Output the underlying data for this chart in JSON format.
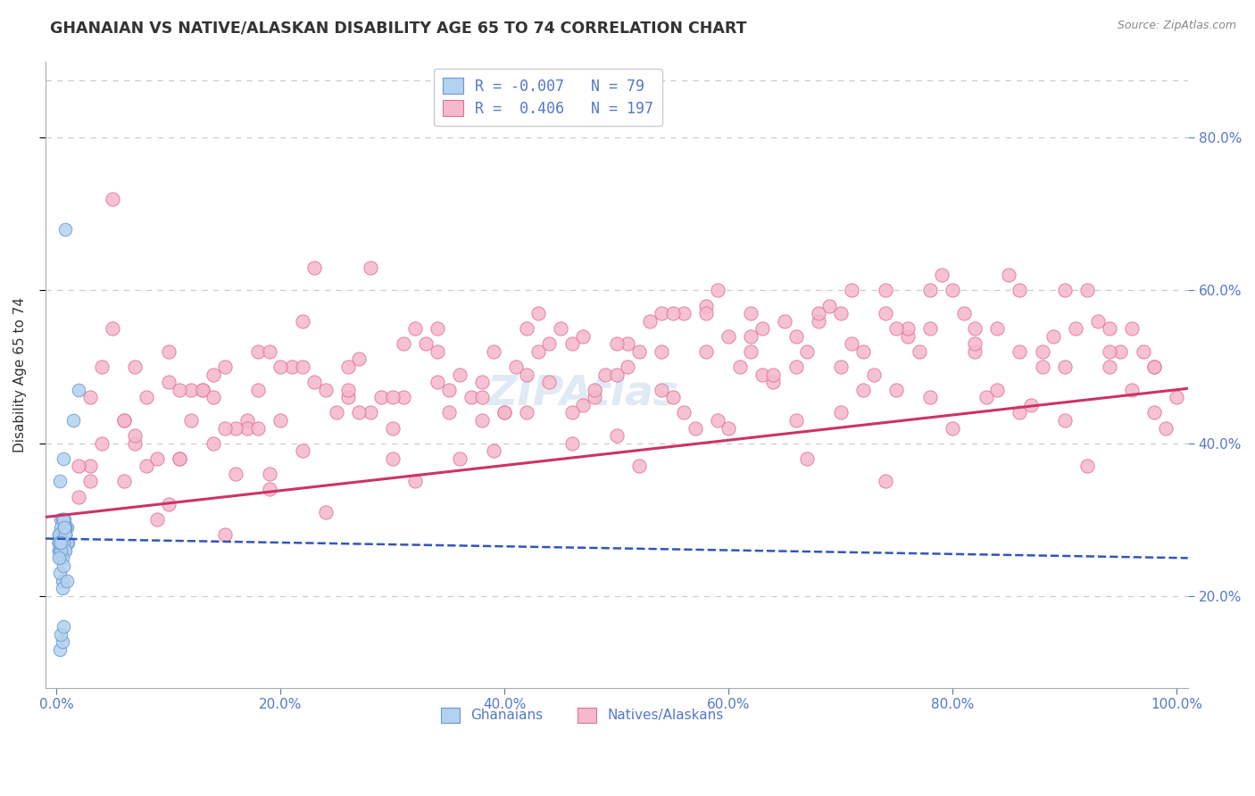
{
  "title": "GHANAIAN VS NATIVE/ALASKAN DISABILITY AGE 65 TO 74 CORRELATION CHART",
  "source": "Source: ZipAtlas.com",
  "ylabel": "Disability Age 65 to 74",
  "xlim": [
    -0.01,
    1.01
  ],
  "ylim": [
    0.08,
    0.9
  ],
  "ytick_vals": [
    0.2,
    0.4,
    0.6,
    0.8
  ],
  "xtick_vals": [
    0.0,
    0.2,
    0.4,
    0.6,
    0.8,
    1.0
  ],
  "legend_R1": "-0.007",
  "legend_N1": "79",
  "legend_R2": "0.406",
  "legend_N2": "197",
  "ghanaian_face": "#b3d1f0",
  "ghanaian_edge": "#6699cc",
  "native_face": "#f5b8cc",
  "native_edge": "#e07090",
  "trend_blue": "#3355bb",
  "trend_pink": "#cc3366",
  "text_color": "#5577cc",
  "grid_color": "#cccccc",
  "title_color": "#333333",
  "source_color": "#888888",
  "watermark_color": "#99bbdd",
  "seed": 42,
  "ghanaians_x": [
    0.005,
    0.008,
    0.003,
    0.006,
    0.01,
    0.004,
    0.007,
    0.002,
    0.009,
    0.005,
    0.003,
    0.006,
    0.004,
    0.008,
    0.002,
    0.005,
    0.007,
    0.003,
    0.006,
    0.004,
    0.008,
    0.002,
    0.005,
    0.003,
    0.007,
    0.004,
    0.006,
    0.002,
    0.005,
    0.009,
    0.003,
    0.006,
    0.004,
    0.007,
    0.002,
    0.005,
    0.008,
    0.003,
    0.006,
    0.004,
    0.007,
    0.002,
    0.005,
    0.003,
    0.006,
    0.004,
    0.008,
    0.002,
    0.005,
    0.007,
    0.003,
    0.006,
    0.004,
    0.008,
    0.002,
    0.005,
    0.007,
    0.003,
    0.006,
    0.004,
    0.008,
    0.002,
    0.005,
    0.003,
    0.007,
    0.004,
    0.006,
    0.002,
    0.005,
    0.009,
    0.003,
    0.006,
    0.015,
    0.02,
    0.003,
    0.005,
    0.004,
    0.006,
    0.008
  ],
  "ghanaians_y": [
    0.27,
    0.28,
    0.26,
    0.29,
    0.27,
    0.28,
    0.26,
    0.27,
    0.29,
    0.28,
    0.26,
    0.27,
    0.3,
    0.28,
    0.27,
    0.26,
    0.29,
    0.28,
    0.27,
    0.26,
    0.29,
    0.27,
    0.28,
    0.26,
    0.29,
    0.27,
    0.3,
    0.26,
    0.28,
    0.27,
    0.25,
    0.29,
    0.27,
    0.26,
    0.28,
    0.27,
    0.29,
    0.26,
    0.28,
    0.27,
    0.3,
    0.26,
    0.28,
    0.27,
    0.29,
    0.26,
    0.28,
    0.27,
    0.3,
    0.26,
    0.28,
    0.27,
    0.29,
    0.26,
    0.28,
    0.25,
    0.29,
    0.27,
    0.3,
    0.26,
    0.28,
    0.27,
    0.22,
    0.23,
    0.29,
    0.27,
    0.24,
    0.25,
    0.21,
    0.22,
    0.35,
    0.38,
    0.43,
    0.47,
    0.13,
    0.14,
    0.15,
    0.16,
    0.68
  ],
  "natives_x": [
    0.02,
    0.03,
    0.05,
    0.07,
    0.09,
    0.11,
    0.13,
    0.15,
    0.17,
    0.19,
    0.04,
    0.06,
    0.08,
    0.1,
    0.12,
    0.14,
    0.16,
    0.18,
    0.2,
    0.22,
    0.24,
    0.26,
    0.28,
    0.3,
    0.32,
    0.34,
    0.36,
    0.38,
    0.4,
    0.42,
    0.44,
    0.46,
    0.48,
    0.5,
    0.52,
    0.54,
    0.56,
    0.58,
    0.6,
    0.62,
    0.64,
    0.66,
    0.68,
    0.7,
    0.72,
    0.74,
    0.76,
    0.78,
    0.8,
    0.82,
    0.84,
    0.86,
    0.88,
    0.9,
    0.92,
    0.94,
    0.96,
    0.98,
    1.0,
    0.03,
    0.07,
    0.11,
    0.15,
    0.19,
    0.23,
    0.27,
    0.31,
    0.35,
    0.39,
    0.43,
    0.47,
    0.51,
    0.55,
    0.59,
    0.63,
    0.67,
    0.71,
    0.75,
    0.79,
    0.83,
    0.87,
    0.91,
    0.95,
    0.99,
    0.05,
    0.09,
    0.13,
    0.17,
    0.21,
    0.25,
    0.29,
    0.33,
    0.37,
    0.41,
    0.45,
    0.49,
    0.53,
    0.57,
    0.61,
    0.65,
    0.69,
    0.73,
    0.77,
    0.81,
    0.85,
    0.89,
    0.93,
    0.97,
    0.06,
    0.1,
    0.14,
    0.18,
    0.22,
    0.26,
    0.3,
    0.34,
    0.38,
    0.42,
    0.46,
    0.5,
    0.54,
    0.58,
    0.62,
    0.66,
    0.7,
    0.74,
    0.78,
    0.82,
    0.86,
    0.9,
    0.94,
    0.98,
    0.04,
    0.08,
    0.12,
    0.16,
    0.2,
    0.24,
    0.28,
    0.32,
    0.36,
    0.4,
    0.44,
    0.48,
    0.52,
    0.56,
    0.6,
    0.64,
    0.68,
    0.72,
    0.76,
    0.8,
    0.84,
    0.88,
    0.92,
    0.96,
    0.02,
    0.06,
    0.1,
    0.14,
    0.18,
    0.22,
    0.26,
    0.3,
    0.34,
    0.38,
    0.42,
    0.46,
    0.5,
    0.54,
    0.58,
    0.62,
    0.66,
    0.7,
    0.74,
    0.78,
    0.82,
    0.86,
    0.9,
    0.94,
    0.98,
    0.03,
    0.07,
    0.11,
    0.15,
    0.19,
    0.23,
    0.27,
    0.31,
    0.35,
    0.39,
    0.43,
    0.47,
    0.51,
    0.55,
    0.59,
    0.63,
    0.67,
    0.71,
    0.75
  ],
  "natives_y": [
    0.33,
    0.35,
    0.72,
    0.4,
    0.3,
    0.38,
    0.47,
    0.28,
    0.43,
    0.36,
    0.5,
    0.35,
    0.37,
    0.32,
    0.47,
    0.4,
    0.36,
    0.52,
    0.43,
    0.39,
    0.31,
    0.46,
    0.63,
    0.38,
    0.35,
    0.48,
    0.38,
    0.43,
    0.44,
    0.55,
    0.48,
    0.4,
    0.46,
    0.41,
    0.37,
    0.57,
    0.44,
    0.58,
    0.42,
    0.52,
    0.48,
    0.43,
    0.56,
    0.44,
    0.47,
    0.35,
    0.54,
    0.46,
    0.42,
    0.52,
    0.47,
    0.44,
    0.5,
    0.43,
    0.37,
    0.5,
    0.47,
    0.44,
    0.46,
    0.37,
    0.41,
    0.38,
    0.5,
    0.34,
    0.63,
    0.51,
    0.46,
    0.44,
    0.39,
    0.52,
    0.45,
    0.53,
    0.46,
    0.43,
    0.49,
    0.38,
    0.53,
    0.47,
    0.62,
    0.46,
    0.45,
    0.55,
    0.52,
    0.42,
    0.55,
    0.38,
    0.47,
    0.42,
    0.5,
    0.44,
    0.46,
    0.53,
    0.46,
    0.5,
    0.55,
    0.49,
    0.56,
    0.42,
    0.5,
    0.56,
    0.58,
    0.49,
    0.52,
    0.57,
    0.62,
    0.54,
    0.56,
    0.52,
    0.43,
    0.52,
    0.49,
    0.47,
    0.56,
    0.5,
    0.46,
    0.55,
    0.48,
    0.44,
    0.53,
    0.49,
    0.52,
    0.57,
    0.54,
    0.5,
    0.57,
    0.6,
    0.55,
    0.53,
    0.6,
    0.5,
    0.55,
    0.5,
    0.4,
    0.46,
    0.43,
    0.42,
    0.5,
    0.47,
    0.44,
    0.55,
    0.49,
    0.44,
    0.53,
    0.47,
    0.52,
    0.57,
    0.54,
    0.49,
    0.57,
    0.52,
    0.55,
    0.6,
    0.55,
    0.52,
    0.6,
    0.55,
    0.37,
    0.43,
    0.48,
    0.46,
    0.42,
    0.5,
    0.47,
    0.42,
    0.52,
    0.46,
    0.49,
    0.44,
    0.53,
    0.47,
    0.52,
    0.57,
    0.54,
    0.5,
    0.57,
    0.6,
    0.55,
    0.52,
    0.6,
    0.52,
    0.5,
    0.46,
    0.5,
    0.47,
    0.42,
    0.52,
    0.48,
    0.44,
    0.53,
    0.47,
    0.52,
    0.57,
    0.54,
    0.5,
    0.57,
    0.6,
    0.55,
    0.52,
    0.6,
    0.55
  ]
}
